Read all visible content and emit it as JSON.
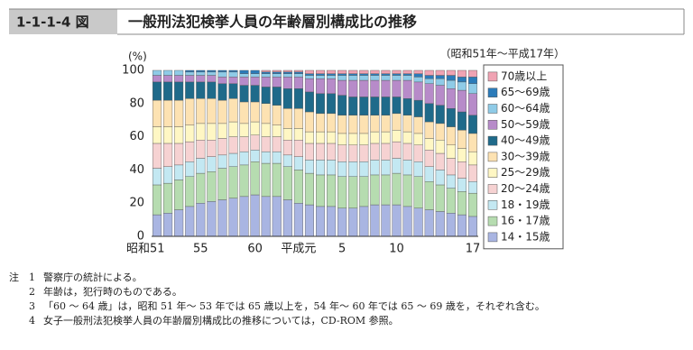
{
  "chart_data": {
    "type": "stacked_bar",
    "figure_number": "1-1-1-4 図",
    "title": "一般刑法犯検挙人員の年齢層別構成比の推移",
    "subtitle": "（昭和51年～平成17年）",
    "y_label": "(%)",
    "categories": [
      "昭和51",
      null,
      null,
      null,
      "55",
      null,
      null,
      null,
      null,
      "60",
      null,
      null,
      null,
      "平成元",
      null,
      null,
      null,
      "5",
      null,
      null,
      null,
      null,
      "10",
      null,
      null,
      null,
      null,
      null,
      null,
      "17"
    ],
    "ylim": [
      0,
      100
    ],
    "yticks": [
      0,
      20,
      40,
      60,
      80,
      100
    ],
    "series": [
      {
        "name": "14・15歳",
        "color": "#a9b5e2",
        "values": [
          13,
          14,
          16,
          18,
          20,
          21,
          22,
          23,
          24,
          25,
          24,
          24,
          22,
          20,
          19,
          18,
          18,
          17,
          17,
          18,
          19,
          19,
          19,
          18,
          17,
          16,
          15,
          14,
          13,
          12
        ]
      },
      {
        "name": "16・17歳",
        "color": "#b6dcb0",
        "values": [
          18,
          18,
          18,
          18,
          18,
          18,
          19,
          19,
          19,
          20,
          20,
          20,
          20,
          20,
          19,
          19,
          19,
          19,
          19,
          18,
          18,
          18,
          19,
          19,
          19,
          17,
          16,
          15,
          14,
          14
        ]
      },
      {
        "name": "18・19歳",
        "color": "#c3e8f2",
        "values": [
          10,
          10,
          9,
          9,
          9,
          9,
          8,
          8,
          8,
          7,
          7,
          7,
          7,
          8,
          8,
          9,
          9,
          9,
          9,
          9,
          9,
          9,
          9,
          9,
          9,
          9,
          9,
          8,
          8,
          7
        ]
      },
      {
        "name": "20～24歳",
        "color": "#f6d2d2",
        "values": [
          15,
          14,
          13,
          12,
          11,
          10,
          10,
          10,
          9,
          9,
          9,
          9,
          9,
          10,
          10,
          10,
          10,
          10,
          10,
          10,
          10,
          10,
          10,
          10,
          10,
          10,
          10,
          10,
          10,
          10
        ]
      },
      {
        "name": "25～29歳",
        "color": "#fff7c4",
        "values": [
          10,
          10,
          10,
          10,
          10,
          10,
          9,
          9,
          8,
          8,
          8,
          7,
          7,
          7,
          7,
          7,
          7,
          7,
          7,
          7,
          7,
          7,
          7,
          7,
          7,
          7,
          8,
          8,
          8,
          8
        ]
      },
      {
        "name": "30～39歳",
        "color": "#fde2b2",
        "values": [
          16,
          16,
          16,
          16,
          15,
          15,
          14,
          14,
          13,
          12,
          12,
          12,
          12,
          12,
          12,
          11,
          11,
          11,
          11,
          11,
          10,
          10,
          10,
          10,
          10,
          10,
          10,
          11,
          11,
          11
        ]
      },
      {
        "name": "40～49歳",
        "color": "#1f6a8a",
        "values": [
          11,
          11,
          11,
          10,
          10,
          10,
          10,
          9,
          10,
          10,
          10,
          11,
          12,
          12,
          12,
          12,
          12,
          12,
          11,
          11,
          11,
          11,
          10,
          10,
          10,
          11,
          11,
          11,
          11,
          11
        ]
      },
      {
        "name": "50～59歳",
        "color": "#b78bc9",
        "values": [
          4,
          4,
          4,
          4,
          4,
          4,
          4,
          4,
          5,
          5,
          6,
          6,
          7,
          7,
          8,
          9,
          9,
          9,
          10,
          10,
          10,
          10,
          10,
          11,
          11,
          12,
          12,
          12,
          13,
          13
        ]
      },
      {
        "name": "60～64歳",
        "color": "#8fcbe7",
        "values": [
          3,
          3,
          3,
          2,
          2,
          2,
          3,
          3,
          2,
          2,
          2,
          2,
          2,
          2,
          2,
          2,
          2,
          3,
          3,
          3,
          3,
          3,
          3,
          3,
          3,
          3,
          4,
          5,
          5,
          6
        ]
      },
      {
        "name": "65～69歳",
        "color": "#2b7bb9",
        "values": [
          0,
          0,
          0,
          1,
          1,
          1,
          1,
          1,
          2,
          2,
          1,
          1,
          1,
          1,
          1,
          1,
          1,
          1,
          1,
          1,
          1,
          1,
          1,
          1,
          2,
          2,
          2,
          3,
          3,
          4
        ]
      },
      {
        "name": "70歳以上",
        "color": "#f0a3b3",
        "values": [
          0,
          0,
          0,
          0,
          0,
          0,
          0,
          0,
          0,
          0,
          1,
          1,
          1,
          1,
          2,
          2,
          2,
          2,
          2,
          2,
          2,
          2,
          2,
          2,
          2,
          3,
          3,
          3,
          4,
          4
        ]
      }
    ],
    "legend": "right"
  },
  "notes": {
    "label": "注",
    "items": [
      {
        "number": "1",
        "text": "警察庁の統計による。"
      },
      {
        "number": "2",
        "text": "年齢は，犯行時のものである。"
      },
      {
        "number": "3",
        "text": "「60 ～ 64 歳」は，昭和 51 年～ 53 年では 65 歳以上を，54 年～ 60 年では 65 ～ 69 歳を，それぞれ含む。"
      },
      {
        "number": "4",
        "text": "女子一般刑法犯検挙人員の年齢層別構成比の推移については，CD-ROM 参照。"
      }
    ]
  }
}
